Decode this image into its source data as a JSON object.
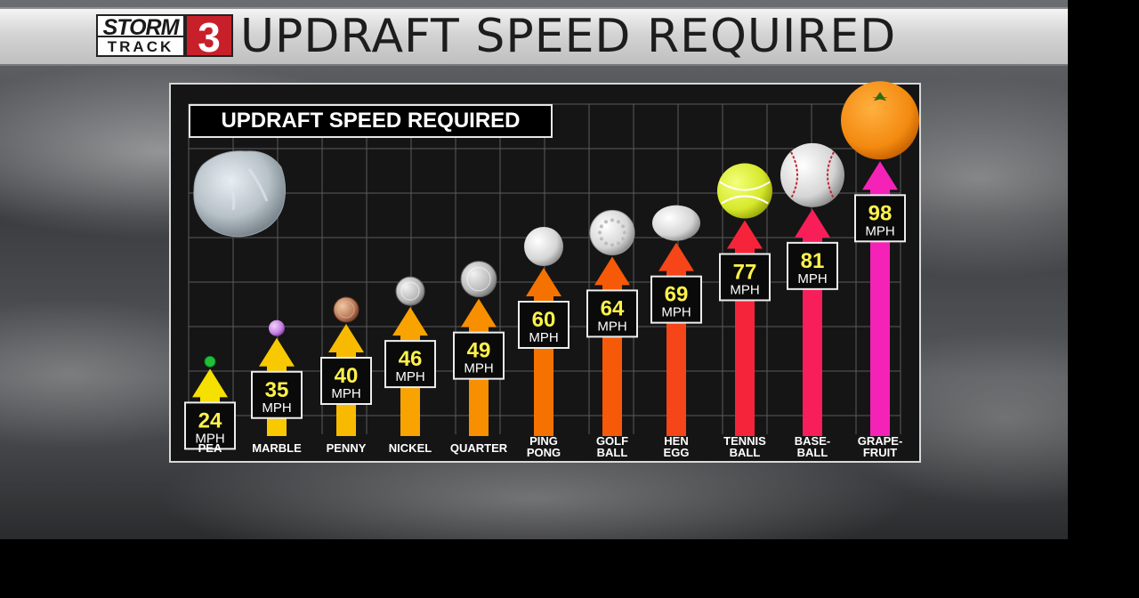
{
  "banner": {
    "logo_top": "STORM",
    "logo_bottom": "TRACK",
    "logo_number": "3",
    "title": "UPDRAFT SPEED REQUIRED"
  },
  "chart_data": {
    "type": "bar",
    "title": "UPDRAFT SPEED REQUIRED",
    "unit": "MPH",
    "categories": [
      [
        "PEA"
      ],
      [
        "MARBLE"
      ],
      [
        "PENNY"
      ],
      [
        "NICKEL"
      ],
      [
        "QUARTER"
      ],
      [
        "PING",
        "PONG"
      ],
      [
        "GOLF",
        "BALL"
      ],
      [
        "HEN",
        "EGG"
      ],
      [
        "TENNIS",
        "BALL"
      ],
      [
        "BASE-",
        "BALL"
      ],
      [
        "GRAPE-",
        "FRUIT"
      ]
    ],
    "values": [
      24,
      35,
      40,
      46,
      49,
      60,
      64,
      69,
      77,
      81,
      98
    ],
    "icons": [
      "pea-icon",
      "marble-icon",
      "penny-icon",
      "nickel-icon",
      "quarter-icon",
      "ping-pong-icon",
      "golf-ball-icon",
      "hen-egg-icon",
      "tennis-ball-icon",
      "baseball-icon",
      "grapefruit-icon"
    ],
    "arrow_colors": [
      "#f6e000",
      "#f8c900",
      "#f8ba00",
      "#f8a300",
      "#f78f00",
      "#f57200",
      "#f65a08",
      "#f64518",
      "#f6243a",
      "#f81e5a",
      "#f522b8"
    ],
    "grid": true,
    "ylim": [
      0,
      100
    ]
  }
}
